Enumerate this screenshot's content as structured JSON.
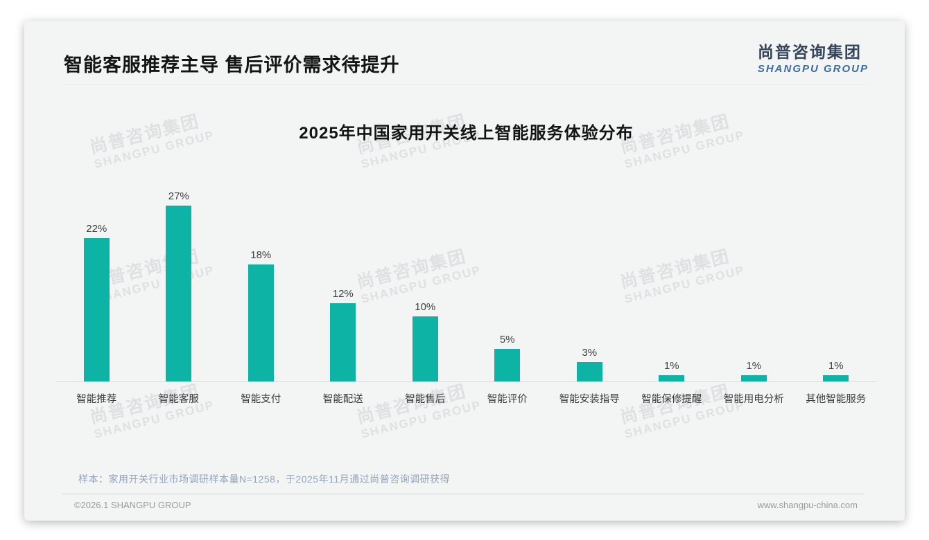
{
  "header": {
    "title": "智能客服推荐主导 售后评价需求待提升",
    "logo": {
      "chinese": "尚普咨询集团",
      "english": "SHANGPU GROUP"
    }
  },
  "watermark": {
    "line1": "尚普咨询集团",
    "line2": "SHANGPU GROUP"
  },
  "chart_data": {
    "type": "bar",
    "title": "2025年中国家用开关线上智能服务体验分布",
    "categories": [
      "智能推荐",
      "智能客服",
      "智能支付",
      "智能配送",
      "智能售后",
      "智能评价",
      "智能安装指导",
      "智能保修提醒",
      "智能用电分析",
      "其他智能服务"
    ],
    "values": [
      22,
      27,
      18,
      12,
      10,
      5,
      3,
      1,
      1,
      1
    ],
    "value_labels": [
      "22%",
      "27%",
      "18%",
      "12%",
      "10%",
      "5%",
      "3%",
      "1%",
      "1%",
      "1%"
    ],
    "unit": "%",
    "xlabel": "",
    "ylabel": "",
    "ylim": [
      0,
      30
    ],
    "grid": false,
    "legend": false,
    "bar_color": "#0db3a4",
    "axis_line_color": "#d9d9d9"
  },
  "footer": {
    "note": "样本：家用开关行业市场调研样本量N=1258，于2025年11月通过尚普咨询调研获得",
    "copyright": "©2026.1 SHANGPU GROUP",
    "website": "www.shangpu-china.com"
  },
  "colors": {
    "accent_teal": "#0db3a4",
    "logo_dark": "#34455c",
    "logo_blue": "#3c6ba4",
    "card_background": "#f3f4f4"
  }
}
